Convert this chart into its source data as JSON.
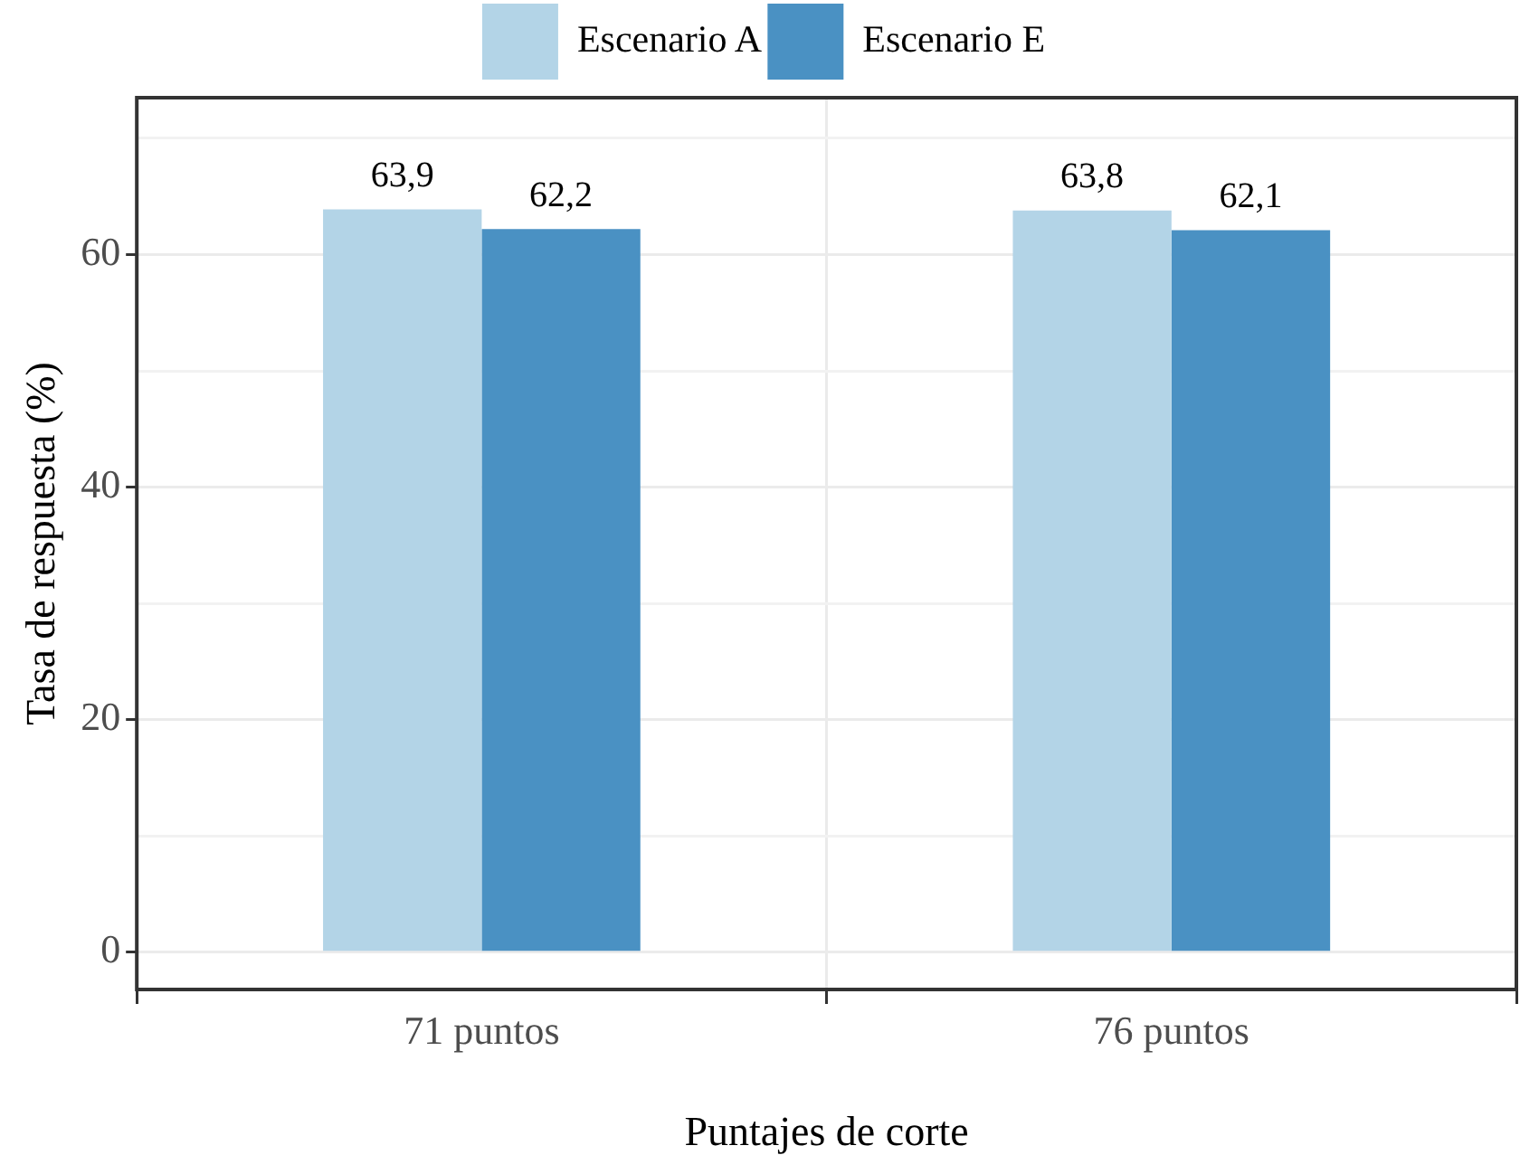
{
  "chart_data": {
    "type": "bar",
    "categories": [
      "71 puntos",
      "76 puntos"
    ],
    "series": [
      {
        "name": "Escenario A",
        "color": "#b3d4e7",
        "values": [
          63.9,
          63.8
        ],
        "value_labels": [
          "63,9",
          "63,8"
        ]
      },
      {
        "name": "Escenario E",
        "color": "#4a91c3",
        "values": [
          62.2,
          62.1
        ],
        "value_labels": [
          "62,2",
          "62,1"
        ]
      }
    ],
    "xlabel": "Puntajes de corte",
    "ylabel": "Tasa de respuesta (%)",
    "ylim": [
      -3.2,
      73.5
    ],
    "yticks": [
      0,
      {
        "value": 10,
        "label": null
      },
      20,
      {
        "value": 30,
        "label": null
      },
      40,
      {
        "value": 50,
        "label": null
      },
      60,
      {
        "value": 70,
        "label": null
      }
    ],
    "grid": true,
    "legend": "top"
  }
}
